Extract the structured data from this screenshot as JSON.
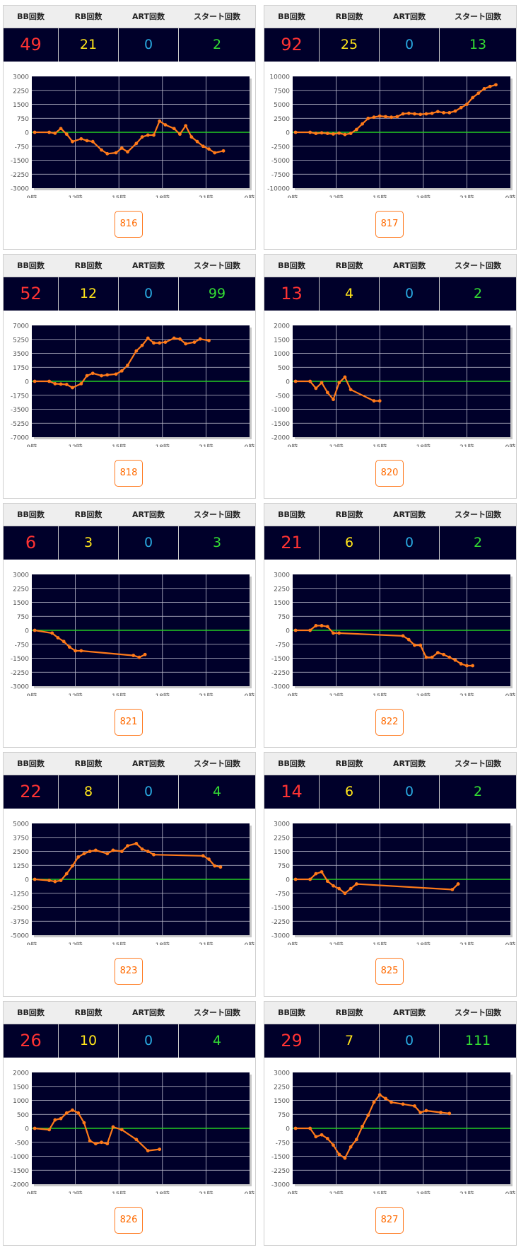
{
  "headers": {
    "bb": "BB回数",
    "rb": "RB回数",
    "art": "ART回数",
    "start": "スタート回数"
  },
  "colors": {
    "bb": "#ff3333",
    "rb": "#ffe51a",
    "art": "#29a9e0",
    "start": "#33dd33",
    "line": "#ff7a1a",
    "zero_line": "#22cc22",
    "plot_bg": "#00002a"
  },
  "x_tick_labels": [
    "9時",
    "12時",
    "15時",
    "18時",
    "21時",
    "0時"
  ],
  "machines": [
    {
      "number": "816",
      "bb": "49",
      "rb": "21",
      "art": "0",
      "start": "2",
      "chart_data": {
        "type": "line",
        "xlim": [
          9,
          24
        ],
        "ylim": [
          -3000,
          3000
        ],
        "y_ticks": [
          "3000",
          "2250",
          "1500",
          "750",
          "0",
          "-750",
          "-1500",
          "-2250",
          "-3000"
        ],
        "series": [
          {
            "x": [
              9.2,
              10.2,
              10.6,
              11,
              11.4,
              11.8,
              12.4,
              12.8,
              13.2,
              13.8,
              14.2,
              14.8,
              15.2,
              15.6,
              16.2,
              16.6,
              17,
              17.4,
              17.8,
              18.2,
              18.8,
              19.2,
              19.6,
              20,
              20.4,
              20.8,
              21.2,
              21.6,
              22.2
            ],
            "y": [
              0,
              0,
              -50,
              200,
              -100,
              -500,
              -350,
              -450,
              -500,
              -950,
              -1150,
              -1100,
              -850,
              -1050,
              -600,
              -250,
              -150,
              -150,
              600,
              400,
              200,
              -100,
              350,
              -250,
              -500,
              -750,
              -900,
              -1100,
              -1000
            ]
          }
        ]
      }
    },
    {
      "number": "817",
      "bb": "92",
      "rb": "25",
      "art": "0",
      "start": "13",
      "chart_data": {
        "type": "line",
        "xlim": [
          9,
          24
        ],
        "ylim": [
          -10000,
          10000
        ],
        "y_ticks": [
          "10000",
          "7500",
          "5000",
          "2500",
          "0",
          "-2500",
          "-5000",
          "-7500",
          "-10000"
        ],
        "series": [
          {
            "x": [
              9.2,
              10.2,
              10.6,
              11,
              11.4,
              11.8,
              12.2,
              12.6,
              13,
              13.4,
              13.8,
              14.2,
              14.6,
              15,
              15.4,
              15.8,
              16.2,
              16.6,
              17,
              17.4,
              17.8,
              18.2,
              18.6,
              19,
              19.4,
              19.8,
              20.2,
              20.6,
              21,
              21.4,
              21.8,
              22.2,
              22.6,
              23
            ],
            "y": [
              0,
              0,
              -200,
              -100,
              -200,
              -300,
              -150,
              -400,
              -200,
              500,
              1500,
              2500,
              2700,
              2900,
              2800,
              2700,
              2800,
              3300,
              3400,
              3300,
              3200,
              3300,
              3400,
              3700,
              3500,
              3500,
              3800,
              4400,
              5000,
              6200,
              7000,
              7800,
              8200,
              8500
            ]
          }
        ]
      }
    },
    {
      "number": "818",
      "bb": "52",
      "rb": "12",
      "art": "0",
      "start": "99",
      "chart_data": {
        "type": "line",
        "xlim": [
          9,
          24
        ],
        "ylim": [
          -7000,
          7000
        ],
        "y_ticks": [
          "7000",
          "5250",
          "3500",
          "1750",
          "0",
          "-1750",
          "-3500",
          "-5250",
          "-7000"
        ],
        "series": [
          {
            "x": [
              9.2,
              10.2,
              10.6,
              11,
              11.4,
              11.8,
              12.4,
              12.8,
              13.2,
              13.8,
              14.2,
              14.8,
              15.2,
              15.6,
              16.2,
              16.6,
              17,
              17.4,
              17.8,
              18.2,
              18.8,
              19.2,
              19.6,
              20.2,
              20.6,
              21.2
            ],
            "y": [
              0,
              0,
              -300,
              -350,
              -400,
              -800,
              -300,
              700,
              1000,
              700,
              800,
              900,
              1300,
              2000,
              3800,
              4500,
              5400,
              4800,
              4800,
              4900,
              5400,
              5300,
              4700,
              4900,
              5300,
              5100
            ]
          }
        ]
      }
    },
    {
      "number": "820",
      "bb": "13",
      "rb": "4",
      "art": "0",
      "start": "2",
      "chart_data": {
        "type": "line",
        "xlim": [
          9,
          24
        ],
        "ylim": [
          -2000,
          2000
        ],
        "y_ticks": [
          "2000",
          "1500",
          "1000",
          "500",
          "0",
          "-500",
          "-1000",
          "-1500",
          "-2000"
        ],
        "series": [
          {
            "x": [
              9.2,
              10.2,
              10.6,
              11,
              11.4,
              11.8,
              12.2,
              12.6,
              13,
              14.6,
              15
            ],
            "y": [
              0,
              0,
              -250,
              -50,
              -400,
              -650,
              -50,
              150,
              -300,
              -700,
              -700
            ]
          }
        ]
      }
    },
    {
      "number": "821",
      "bb": "6",
      "rb": "3",
      "art": "0",
      "start": "3",
      "chart_data": {
        "type": "line",
        "xlim": [
          9,
          24
        ],
        "ylim": [
          -3000,
          3000
        ],
        "y_ticks": [
          "3000",
          "2250",
          "1500",
          "750",
          "0",
          "-750",
          "-1500",
          "-2250",
          "-3000"
        ],
        "series": [
          {
            "x": [
              9.2,
              10.4,
              10.8,
              11.2,
              11.6,
              12,
              12.4,
              16,
              16.4,
              16.8
            ],
            "y": [
              0,
              -150,
              -400,
              -600,
              -900,
              -1100,
              -1100,
              -1350,
              -1450,
              -1300
            ]
          }
        ]
      }
    },
    {
      "number": "822",
      "bb": "21",
      "rb": "6",
      "art": "0",
      "start": "2",
      "chart_data": {
        "type": "line",
        "xlim": [
          9,
          24
        ],
        "ylim": [
          -3000,
          3000
        ],
        "y_ticks": [
          "3000",
          "2250",
          "1500",
          "750",
          "0",
          "-750",
          "-1500",
          "-2250",
          "-3000"
        ],
        "series": [
          {
            "x": [
              9.2,
              10.2,
              10.6,
              11,
              11.4,
              11.8,
              12.2,
              16.6,
              17,
              17.4,
              17.8,
              18.2,
              18.6,
              19,
              19.4,
              19.8,
              20.2,
              20.6,
              21,
              21.4
            ],
            "y": [
              0,
              0,
              250,
              250,
              200,
              -150,
              -150,
              -300,
              -500,
              -800,
              -800,
              -1450,
              -1450,
              -1200,
              -1300,
              -1450,
              -1600,
              -1800,
              -1900,
              -1900
            ]
          }
        ]
      }
    },
    {
      "number": "823",
      "bb": "22",
      "rb": "8",
      "art": "0",
      "start": "4",
      "chart_data": {
        "type": "line",
        "xlim": [
          9,
          24
        ],
        "ylim": [
          -5000,
          5000
        ],
        "y_ticks": [
          "5000",
          "3750",
          "2500",
          "1250",
          "0",
          "-1250",
          "-2500",
          "-3750",
          "-5000"
        ],
        "series": [
          {
            "x": [
              9.2,
              10.2,
              10.6,
              11,
              11.4,
              11.8,
              12.2,
              12.6,
              13,
              13.4,
              14.2,
              14.6,
              15.2,
              15.6,
              16.2,
              16.6,
              17,
              17.4,
              20.8,
              21.2,
              21.6,
              22
            ],
            "y": [
              0,
              -100,
              -200,
              -100,
              500,
              1200,
              2000,
              2300,
              2500,
              2600,
              2300,
              2600,
              2500,
              3000,
              3200,
              2700,
              2500,
              2200,
              2100,
              1800,
              1200,
              1100
            ]
          }
        ]
      }
    },
    {
      "number": "825",
      "bb": "14",
      "rb": "6",
      "art": "0",
      "start": "2",
      "chart_data": {
        "type": "line",
        "xlim": [
          9,
          24
        ],
        "ylim": [
          -3000,
          3000
        ],
        "y_ticks": [
          "3000",
          "2250",
          "1500",
          "750",
          "0",
          "-750",
          "-1500",
          "-2250",
          "-3000"
        ],
        "series": [
          {
            "x": [
              9.2,
              10.2,
              10.6,
              11,
              11.4,
              11.8,
              12.2,
              12.6,
              13,
              13.4,
              20,
              20.4
            ],
            "y": [
              0,
              0,
              300,
              400,
              -100,
              -350,
              -500,
              -750,
              -500,
              -250,
              -550,
              -250
            ]
          }
        ]
      }
    },
    {
      "number": "826",
      "bb": "26",
      "rb": "10",
      "art": "0",
      "start": "4",
      "chart_data": {
        "type": "line",
        "xlim": [
          9,
          24
        ],
        "ylim": [
          -2000,
          2000
        ],
        "y_ticks": [
          "2000",
          "1500",
          "1000",
          "500",
          "0",
          "-500",
          "-1000",
          "-1500",
          "-2000"
        ],
        "series": [
          {
            "x": [
              9.2,
              10.2,
              10.6,
              11,
              11.4,
              11.8,
              12.2,
              12.6,
              13,
              13.4,
              13.8,
              14.2,
              14.6,
              15.2,
              16.2,
              17,
              17.8
            ],
            "y": [
              0,
              -50,
              300,
              350,
              550,
              650,
              550,
              200,
              -450,
              -550,
              -500,
              -550,
              50,
              -50,
              -400,
              -800,
              -750
            ]
          }
        ]
      }
    },
    {
      "number": "827",
      "bb": "29",
      "rb": "7",
      "art": "0",
      "start": "111",
      "chart_data": {
        "type": "line",
        "xlim": [
          9,
          24
        ],
        "ylim": [
          -3000,
          3000
        ],
        "y_ticks": [
          "3000",
          "2250",
          "1500",
          "750",
          "0",
          "-750",
          "-1500",
          "-2250",
          "-3000"
        ],
        "series": [
          {
            "x": [
              9.2,
              10.2,
              10.6,
              11,
              11.4,
              11.8,
              12.2,
              12.6,
              13,
              13.4,
              13.8,
              14.2,
              14.6,
              15,
              15.4,
              15.8,
              16.6,
              17.4,
              17.8,
              18.2,
              19.2,
              19.8
            ],
            "y": [
              0,
              0,
              -450,
              -350,
              -550,
              -900,
              -1400,
              -1600,
              -1000,
              -600,
              100,
              700,
              1400,
              1800,
              1600,
              1400,
              1300,
              1200,
              850,
              950,
              850,
              800
            ]
          }
        ]
      }
    }
  ]
}
